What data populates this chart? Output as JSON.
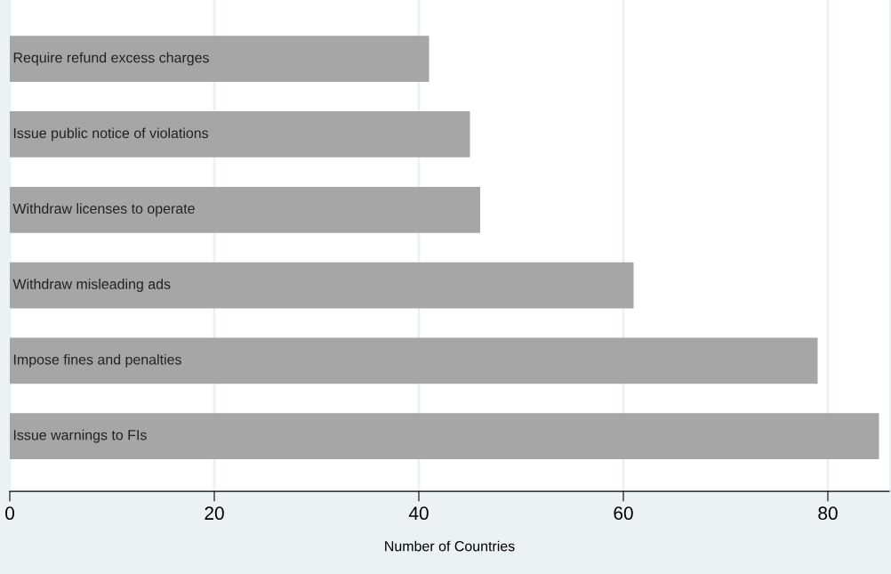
{
  "chart_data": {
    "type": "bar",
    "orientation": "horizontal",
    "xlabel": "Number of Countries",
    "categories": [
      "Require refund excess charges",
      "Issue public notice of violations",
      "Withdraw licenses to operate",
      "Withdraw misleading ads",
      "Impose fines and penalties",
      "Issue warnings to FIs"
    ],
    "values": [
      41,
      45,
      46,
      61,
      79,
      85
    ],
    "color": "#a6a6a6",
    "xlim": [
      0,
      86
    ],
    "xticks": [
      0,
      20,
      40,
      60,
      80
    ],
    "grid": "x",
    "legend": false
  }
}
